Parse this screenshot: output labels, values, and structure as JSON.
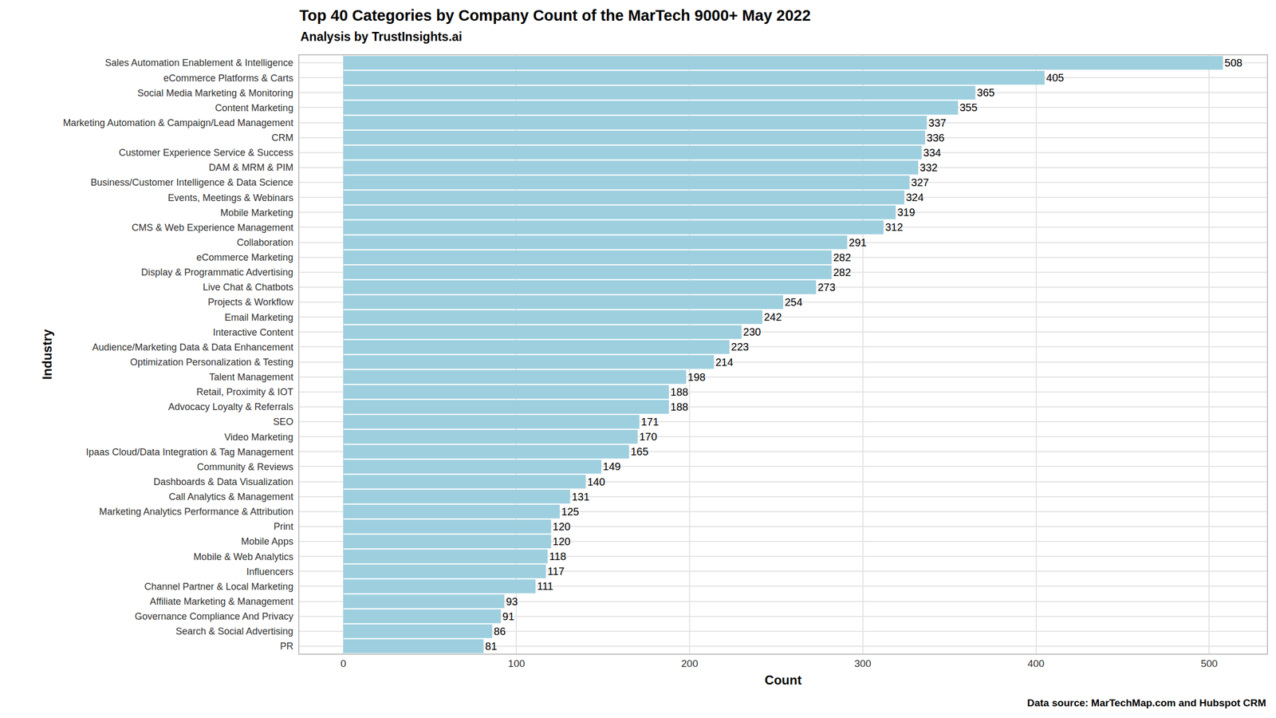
{
  "chart_data": {
    "type": "bar",
    "orientation": "horizontal",
    "title": "Top 40 Categories by Company Count of the MarTech 9000+ May 2022",
    "subtitle": "Analysis by TrustInsights.ai",
    "x_label": "Count",
    "y_label": "Industry",
    "annotation": "Data source: MarTechMap.com and Hubspot CRM",
    "categories": [
      "Sales Automation Enablement & Intelligence",
      "eCommerce Platforms & Carts",
      "Social Media Marketing & Monitoring",
      "Content Marketing",
      "Marketing Automation & Campaign/Lead Management",
      "CRM",
      "Customer Experience Service & Success",
      "DAM & MRM & PIM",
      "Business/Customer Intelligence & Data Science",
      "Events, Meetings & Webinars",
      "Mobile Marketing",
      "CMS & Web Experience Management",
      "Collaboration",
      "eCommerce Marketing",
      "Display & Programmatic Advertising",
      "Live Chat & Chatbots",
      "Projects & Workflow",
      "Email Marketing",
      "Interactive Content",
      "Audience/Marketing Data & Data Enhancement",
      "Optimization Personalization & Testing",
      "Talent Management",
      "Retail, Proximity & IOT",
      "Advocacy Loyalty & Referrals",
      "SEO",
      "Video Marketing",
      "Ipaas Cloud/Data Integration & Tag Management",
      "Community & Reviews",
      "Dashboards & Data Visualization",
      "Call Analytics & Management",
      "Marketing Analytics Performance & Attribution",
      "Print",
      "Mobile Apps",
      "Mobile & Web Analytics",
      "Influencers",
      "Channel Partner & Local Marketing",
      "Affiliate Marketing & Management",
      "Governance Compliance And Privacy",
      "Search & Social Advertising",
      "PR"
    ],
    "values": [
      508,
      405,
      365,
      355,
      337,
      336,
      334,
      332,
      327,
      324,
      319,
      312,
      291,
      282,
      282,
      273,
      254,
      242,
      230,
      223,
      214,
      198,
      188,
      188,
      171,
      170,
      165,
      149,
      140,
      131,
      125,
      120,
      120,
      118,
      117,
      111,
      93,
      91,
      86,
      81
    ],
    "color": "#9ecfdf",
    "xlim": [
      -25.4,
      533.4
    ],
    "xticks": [
      0,
      100,
      200,
      300,
      400,
      500
    ],
    "grid": true,
    "data_labels": true
  }
}
